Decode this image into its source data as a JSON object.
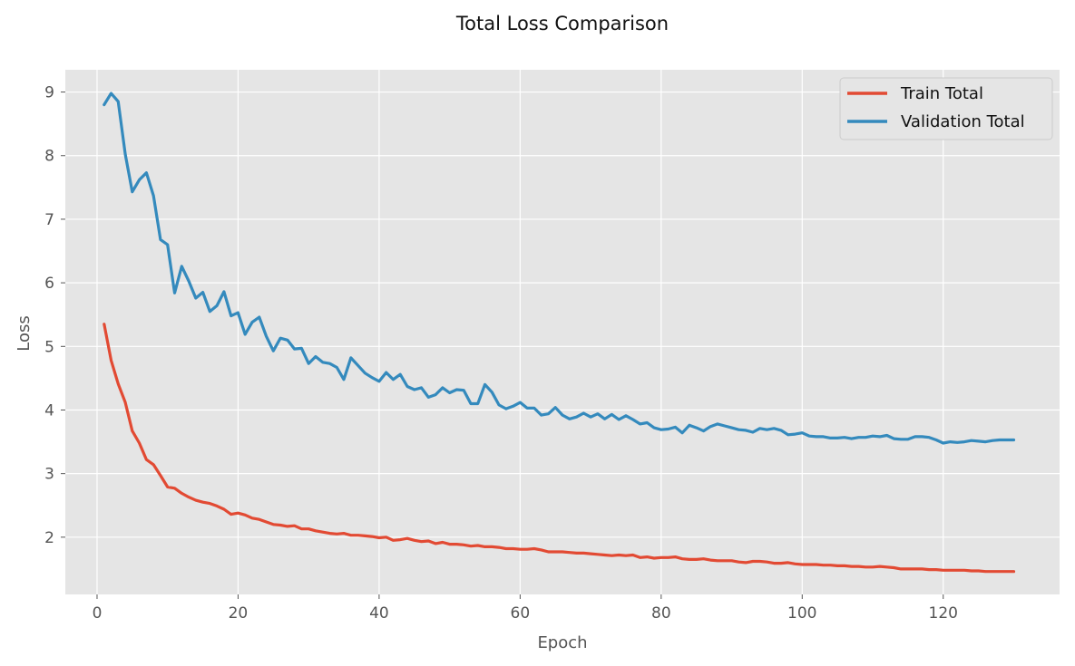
{
  "chart_data": {
    "type": "line",
    "title": "Total Loss Comparison",
    "xlabel": "Epoch",
    "ylabel": "Loss",
    "xlim": [
      -4.5,
      136.5
    ],
    "ylim": [
      1.1,
      9.35
    ],
    "xticks": [
      0,
      20,
      40,
      60,
      80,
      100,
      120
    ],
    "yticks": [
      2,
      3,
      4,
      5,
      6,
      7,
      8,
      9
    ],
    "grid": true,
    "legend_position": "top-right",
    "colors": {
      "plot_background": "#e5e5e5",
      "grid": "#ffffff"
    },
    "x": [
      1,
      2,
      3,
      4,
      5,
      6,
      7,
      8,
      9,
      10,
      11,
      12,
      13,
      14,
      15,
      16,
      17,
      18,
      19,
      20,
      21,
      22,
      23,
      24,
      25,
      26,
      27,
      28,
      29,
      30,
      31,
      32,
      33,
      34,
      35,
      36,
      37,
      38,
      39,
      40,
      41,
      42,
      43,
      44,
      45,
      46,
      47,
      48,
      49,
      50,
      51,
      52,
      53,
      54,
      55,
      56,
      57,
      58,
      59,
      60,
      61,
      62,
      63,
      64,
      65,
      66,
      67,
      68,
      69,
      70,
      71,
      72,
      73,
      74,
      75,
      76,
      77,
      78,
      79,
      80,
      81,
      82,
      83,
      84,
      85,
      86,
      87,
      88,
      89,
      90,
      91,
      92,
      93,
      94,
      95,
      96,
      97,
      98,
      99,
      100,
      101,
      102,
      103,
      104,
      105,
      106,
      107,
      108,
      109,
      110,
      111,
      112,
      113,
      114,
      115,
      116,
      117,
      118,
      119,
      120,
      121,
      122,
      123,
      124,
      125,
      126,
      127,
      128,
      129,
      130
    ],
    "series": [
      {
        "name": "Train Total",
        "color": "#e24a33",
        "values": [
          5.35,
          4.78,
          4.41,
          4.12,
          3.67,
          3.48,
          3.22,
          3.14,
          2.97,
          2.79,
          2.77,
          2.69,
          2.63,
          2.58,
          2.55,
          2.53,
          2.49,
          2.44,
          2.36,
          2.38,
          2.35,
          2.3,
          2.28,
          2.24,
          2.2,
          2.19,
          2.17,
          2.18,
          2.13,
          2.13,
          2.1,
          2.08,
          2.06,
          2.05,
          2.06,
          2.03,
          2.03,
          2.02,
          2.01,
          1.99,
          2.0,
          1.95,
          1.96,
          1.98,
          1.95,
          1.93,
          1.94,
          1.9,
          1.92,
          1.89,
          1.89,
          1.88,
          1.86,
          1.87,
          1.85,
          1.85,
          1.84,
          1.82,
          1.82,
          1.81,
          1.81,
          1.82,
          1.8,
          1.77,
          1.77,
          1.77,
          1.76,
          1.75,
          1.75,
          1.74,
          1.73,
          1.72,
          1.71,
          1.72,
          1.71,
          1.72,
          1.68,
          1.69,
          1.67,
          1.68,
          1.68,
          1.69,
          1.66,
          1.65,
          1.65,
          1.66,
          1.64,
          1.63,
          1.63,
          1.63,
          1.61,
          1.6,
          1.62,
          1.62,
          1.61,
          1.59,
          1.59,
          1.6,
          1.58,
          1.57,
          1.57,
          1.57,
          1.56,
          1.56,
          1.55,
          1.55,
          1.54,
          1.54,
          1.53,
          1.53,
          1.54,
          1.53,
          1.52,
          1.5,
          1.5,
          1.5,
          1.5,
          1.49,
          1.49,
          1.48,
          1.48,
          1.48,
          1.48,
          1.47,
          1.47,
          1.46,
          1.46,
          1.46,
          1.46,
          1.46
        ]
      },
      {
        "name": "Validation Total",
        "color": "#348abd",
        "values": [
          8.8,
          8.98,
          8.85,
          8.02,
          7.43,
          7.62,
          7.73,
          7.37,
          6.68,
          6.6,
          5.84,
          6.26,
          6.03,
          5.76,
          5.85,
          5.55,
          5.64,
          5.86,
          5.48,
          5.53,
          5.19,
          5.38,
          5.46,
          5.16,
          4.93,
          5.13,
          5.1,
          4.96,
          4.97,
          4.73,
          4.84,
          4.75,
          4.73,
          4.67,
          4.48,
          4.82,
          4.7,
          4.58,
          4.51,
          4.45,
          4.59,
          4.48,
          4.56,
          4.37,
          4.32,
          4.35,
          4.2,
          4.24,
          4.35,
          4.27,
          4.32,
          4.31,
          4.1,
          4.1,
          4.4,
          4.28,
          4.08,
          4.02,
          4.06,
          4.12,
          4.03,
          4.03,
          3.92,
          3.94,
          4.04,
          3.92,
          3.86,
          3.89,
          3.95,
          3.89,
          3.94,
          3.86,
          3.93,
          3.85,
          3.91,
          3.85,
          3.78,
          3.8,
          3.72,
          3.69,
          3.7,
          3.73,
          3.64,
          3.76,
          3.72,
          3.67,
          3.74,
          3.78,
          3.75,
          3.72,
          3.69,
          3.68,
          3.65,
          3.71,
          3.69,
          3.71,
          3.68,
          3.61,
          3.62,
          3.64,
          3.59,
          3.58,
          3.58,
          3.56,
          3.56,
          3.57,
          3.55,
          3.57,
          3.57,
          3.59,
          3.58,
          3.6,
          3.55,
          3.54,
          3.54,
          3.58,
          3.58,
          3.57,
          3.53,
          3.48,
          3.5,
          3.49,
          3.5,
          3.52,
          3.51,
          3.5,
          3.52,
          3.53,
          3.53,
          3.53
        ]
      }
    ]
  }
}
